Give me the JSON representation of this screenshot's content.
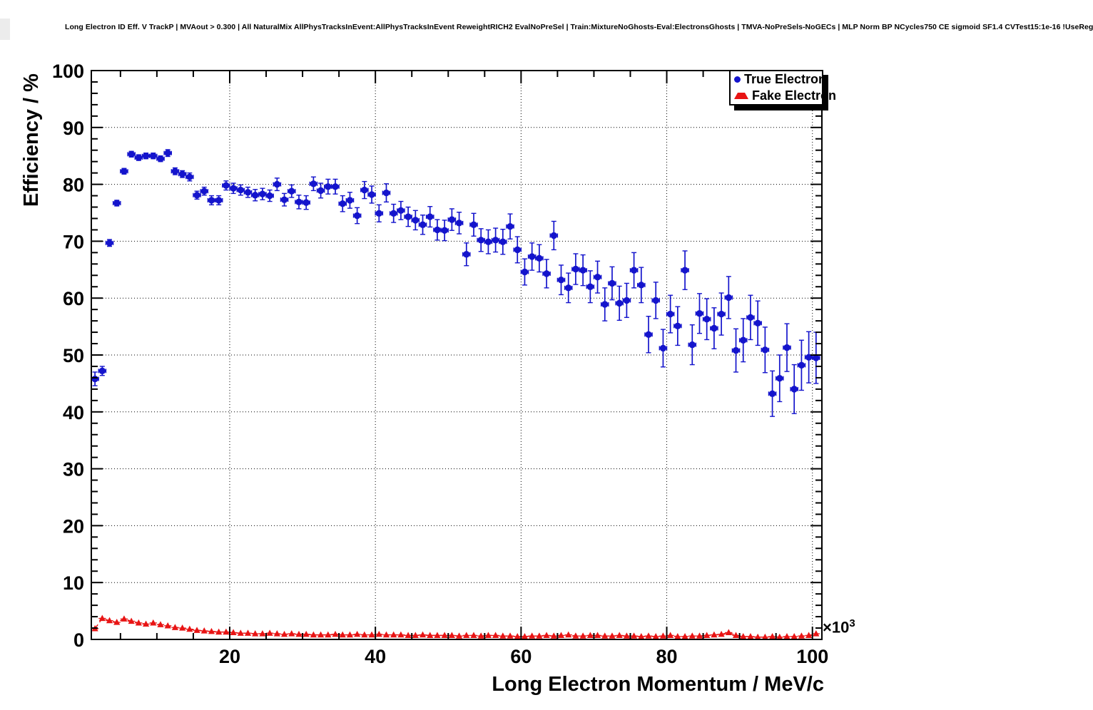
{
  "header": {
    "title": "Long Electron ID Eff. V TrackP | MVAout > 0.300 | All NaturalMix AllPhysTracksInEvent:AllPhysTracksInEvent ReweightRICH2 EvalNoPreSel | Train:MixtureNoGhosts-Eval:ElectronsGhosts | TMVA-NoPreSels-NoGECs | MLP Norm BP NCycles750 CE sigmoid SF1.4 CVTest15:1e-16 !UseReg"
  },
  "plot": {
    "frame": {
      "l": 128,
      "r": 1152,
      "t": 99,
      "b": 897
    },
    "frame_color": "#000000",
    "grid_style": "dotted"
  },
  "axes": {
    "x": {
      "min": 1.0,
      "max": 101.3,
      "label": "Long Electron Momentum / MeV/c",
      "exponent_base": "×10",
      "exponent_power": "3",
      "labeled_ticks": [
        20,
        40,
        60,
        80,
        100
      ],
      "minor_tick_step": 5,
      "grid_at": [
        20,
        40,
        60,
        80,
        100
      ]
    },
    "y": {
      "min": 0,
      "max": 100,
      "label": "Efficiency / %",
      "labeled_ticks": [
        0,
        10,
        20,
        30,
        40,
        50,
        60,
        70,
        80,
        90,
        100
      ],
      "minor_tick_step": 2,
      "grid_at": [
        10,
        20,
        30,
        40,
        50,
        60,
        70,
        80,
        90
      ]
    }
  },
  "legend": {
    "entries": [
      {
        "label": "True Electron",
        "marker": "circle",
        "color": "#1414cc"
      },
      {
        "label": "Fake Electron",
        "marker": "triangle",
        "color": "#e81414"
      }
    ]
  },
  "colors": {
    "true_electron": "#1414cc",
    "fake_electron": "#e81414",
    "axis": "#000000"
  },
  "chart_data": {
    "type": "scatter",
    "title": "Long Electron ID Eff. V TrackP",
    "xlabel": "Long Electron Momentum / MeV/c",
    "ylabel": "Efficiency / %",
    "xlim": [
      1.0,
      101.3
    ],
    "ylim": [
      0,
      100
    ],
    "x_units": "×10³ MeV/c",
    "grid": true,
    "legend_position": "top-right",
    "x_bins": {
      "first_center": 1.5,
      "step": 1.0,
      "count": 100,
      "half_width": 0.5
    },
    "series": [
      {
        "name": "True Electron",
        "marker": "filled-circle",
        "color": "#1414cc",
        "values": [
          45.8,
          47.2,
          69.7,
          76.7,
          82.3,
          85.3,
          84.7,
          85.0,
          85.0,
          84.5,
          85.5,
          82.3,
          81.8,
          81.3,
          78.1,
          78.8,
          77.2,
          77.2,
          79.8,
          79.3,
          79.0,
          78.6,
          78.1,
          78.3,
          78.0,
          80.0,
          77.3,
          78.8,
          76.9,
          76.8,
          80.1,
          78.9,
          79.6,
          79.6,
          76.6,
          77.2,
          74.5,
          79.0,
          78.2,
          74.9,
          78.5,
          74.9,
          75.4,
          74.3,
          73.7,
          72.9,
          74.3,
          72.0,
          71.9,
          73.8,
          73.2,
          67.7,
          72.9,
          70.2,
          69.9,
          70.2,
          69.9,
          72.6,
          68.5,
          64.6,
          67.3,
          67.0,
          64.3,
          71.0,
          63.2,
          61.8,
          65.1,
          64.9,
          62.0,
          63.7,
          58.9,
          62.6,
          59.1,
          59.6,
          64.9,
          62.3,
          53.6,
          59.6,
          51.2,
          57.2,
          55.1,
          64.9,
          51.8,
          57.3,
          56.3,
          54.7,
          57.2,
          60.1,
          50.8,
          52.6,
          56.6,
          55.6,
          50.9,
          43.2,
          45.9,
          51.3,
          44.0,
          48.2,
          49.6,
          49.5
        ],
        "yerr": [
          1.2,
          0.8,
          0.6,
          0.5,
          0.5,
          0.5,
          0.5,
          0.5,
          0.5,
          0.5,
          0.6,
          0.6,
          0.6,
          0.7,
          0.7,
          0.7,
          0.8,
          0.8,
          0.8,
          0.9,
          0.9,
          0.9,
          1.0,
          1.0,
          1.0,
          1.1,
          1.1,
          1.1,
          1.2,
          1.2,
          1.2,
          1.3,
          1.3,
          1.3,
          1.4,
          1.4,
          1.4,
          1.5,
          1.5,
          1.5,
          1.6,
          1.6,
          1.6,
          1.7,
          1.7,
          1.7,
          1.8,
          1.8,
          1.8,
          1.9,
          1.9,
          2.0,
          2.0,
          2.0,
          2.1,
          2.1,
          2.2,
          2.2,
          2.3,
          2.3,
          2.4,
          2.4,
          2.5,
          2.5,
          2.6,
          2.6,
          2.7,
          2.7,
          2.8,
          2.8,
          2.9,
          2.9,
          3.0,
          3.0,
          3.1,
          3.1,
          3.2,
          3.2,
          3.3,
          3.3,
          3.4,
          3.4,
          3.5,
          3.5,
          3.6,
          3.6,
          3.7,
          3.7,
          3.8,
          3.8,
          3.9,
          3.9,
          4.0,
          4.0,
          4.1,
          4.2,
          4.3,
          4.4,
          4.5,
          4.5
        ],
        "line": "none"
      },
      {
        "name": "Fake Electron",
        "marker": "filled-triangle",
        "color": "#e81414",
        "values": [
          1.9,
          3.7,
          3.3,
          3.0,
          3.6,
          3.2,
          2.9,
          2.7,
          2.9,
          2.6,
          2.4,
          2.1,
          2.0,
          1.8,
          1.6,
          1.5,
          1.4,
          1.3,
          1.3,
          1.2,
          1.1,
          1.1,
          1.0,
          1.0,
          1.1,
          1.0,
          0.9,
          1.0,
          0.9,
          0.9,
          0.8,
          0.8,
          0.8,
          0.9,
          0.8,
          0.8,
          0.9,
          0.8,
          0.8,
          0.9,
          0.8,
          0.8,
          0.8,
          0.7,
          0.7,
          0.8,
          0.7,
          0.7,
          0.7,
          0.7,
          0.6,
          0.7,
          0.7,
          0.6,
          0.7,
          0.7,
          0.6,
          0.6,
          0.5,
          0.5,
          0.6,
          0.6,
          0.7,
          0.6,
          0.7,
          0.8,
          0.6,
          0.6,
          0.7,
          0.7,
          0.6,
          0.6,
          0.7,
          0.6,
          0.6,
          0.5,
          0.6,
          0.5,
          0.6,
          0.7,
          0.5,
          0.5,
          0.6,
          0.6,
          0.7,
          0.8,
          0.9,
          1.2,
          0.7,
          0.5,
          0.5,
          0.4,
          0.4,
          0.5,
          0.4,
          0.5,
          0.5,
          0.6,
          0.7,
          1.0
        ],
        "yerr": 0.15,
        "line": "dashed"
      }
    ]
  }
}
